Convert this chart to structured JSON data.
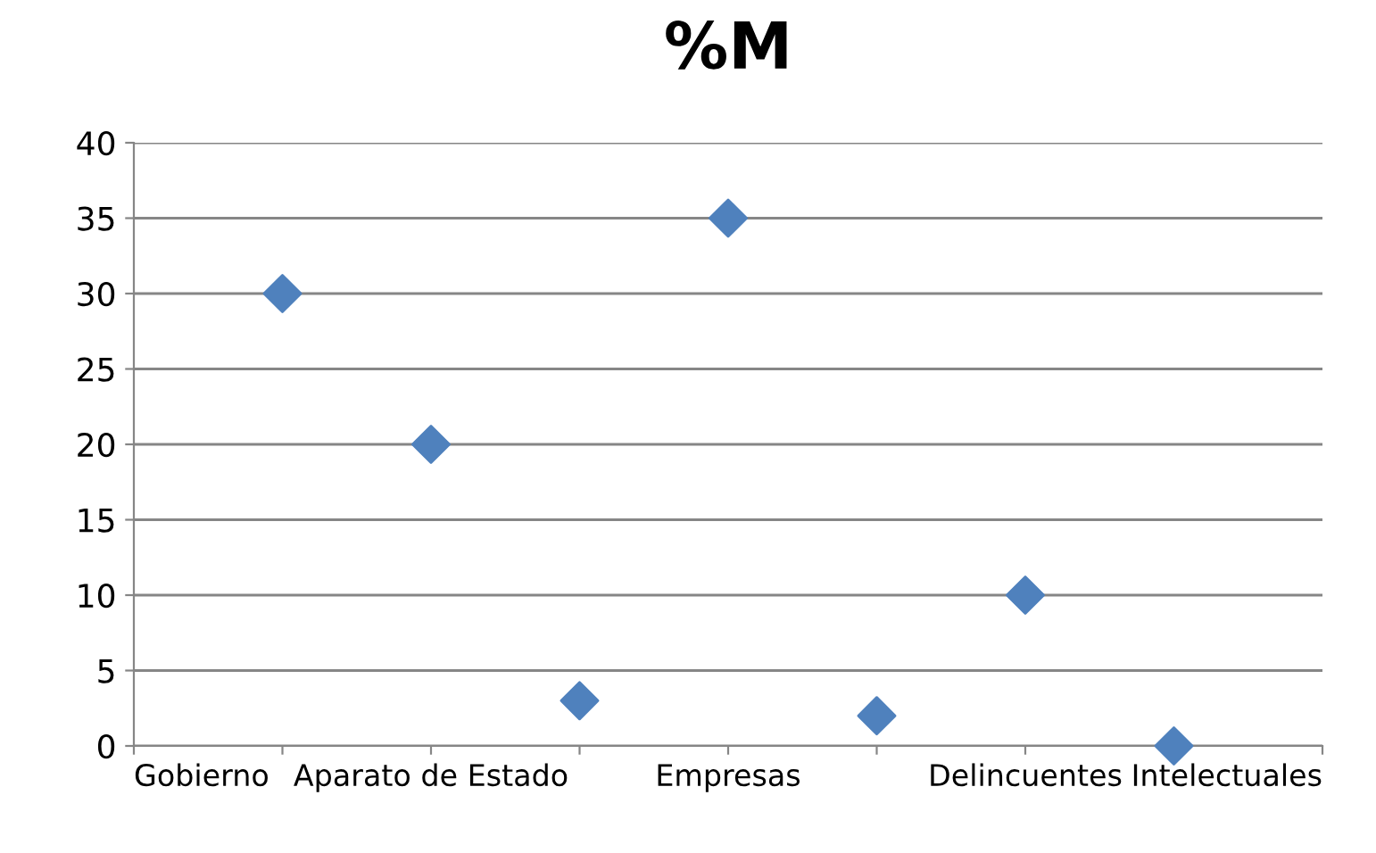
{
  "chart_data": {
    "type": "scatter",
    "title": "%M",
    "categories": [
      "Gobierno",
      null,
      "Aparato de Estado",
      null,
      "Empresas",
      null,
      "Delincuentes",
      null,
      "Intelectuales"
    ],
    "series": [
      {
        "color": "#4f81bd",
        "values": [
          null,
          30,
          20,
          3,
          35,
          2,
          10,
          0,
          null
        ]
      }
    ],
    "ylim": [
      0,
      40
    ],
    "yticks": [
      0,
      5,
      10,
      15,
      20,
      25,
      30,
      35,
      40
    ],
    "grid": "y",
    "legend": false,
    "marker": "diamond"
  }
}
